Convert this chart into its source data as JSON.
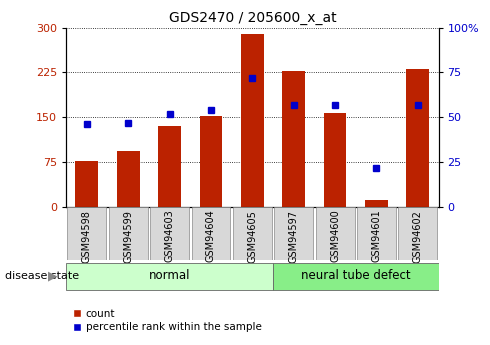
{
  "title": "GDS2470 / 205600_x_at",
  "categories": [
    "GSM94598",
    "GSM94599",
    "GSM94603",
    "GSM94604",
    "GSM94605",
    "GSM94597",
    "GSM94600",
    "GSM94601",
    "GSM94602"
  ],
  "count_values": [
    77,
    93,
    135,
    152,
    290,
    228,
    158,
    12,
    230
  ],
  "percentile_values": [
    46,
    47,
    52,
    54,
    72,
    57,
    57,
    22,
    57
  ],
  "bar_color": "#bb2200",
  "dot_color": "#0000cc",
  "left_ylim": [
    0,
    300
  ],
  "right_ylim": [
    0,
    100
  ],
  "left_yticks": [
    0,
    75,
    150,
    225,
    300
  ],
  "right_yticks": [
    0,
    25,
    50,
    75,
    100
  ],
  "right_yticklabels": [
    "0",
    "25",
    "50",
    "75",
    "100%"
  ],
  "group_normal_label": "normal",
  "group_defect_label": "neural tube defect",
  "disease_state_label": "disease state",
  "legend_count": "count",
  "legend_percentile": "percentile rank within the sample",
  "normal_color": "#ccffcc",
  "defect_color": "#88ee88",
  "tick_label_bg": "#d8d8d8",
  "title_fontsize": 10,
  "axis_fontsize": 8,
  "label_fontsize": 8.5
}
